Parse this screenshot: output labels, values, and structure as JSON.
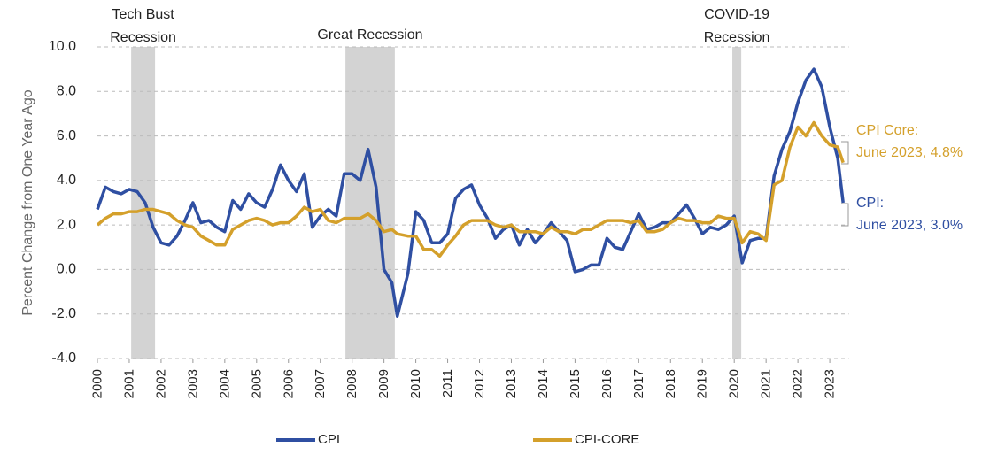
{
  "chart_data": {
    "type": "line",
    "y_label": "Percent Change from One Year Ago",
    "x": [
      2000,
      2000.25,
      2000.5,
      2000.75,
      2001,
      2001.25,
      2001.5,
      2001.75,
      2002,
      2002.25,
      2002.5,
      2002.75,
      2003,
      2003.25,
      2003.5,
      2003.75,
      2004,
      2004.25,
      2004.5,
      2004.75,
      2005,
      2005.25,
      2005.5,
      2005.75,
      2006,
      2006.25,
      2006.5,
      2006.75,
      2007,
      2007.25,
      2007.5,
      2007.75,
      2008,
      2008.25,
      2008.5,
      2008.75,
      2009,
      2009.25,
      2009.42,
      2009.75,
      2010,
      2010.25,
      2010.5,
      2010.75,
      2011,
      2011.25,
      2011.5,
      2011.75,
      2012,
      2012.25,
      2012.5,
      2012.75,
      2013,
      2013.25,
      2013.5,
      2013.75,
      2014,
      2014.25,
      2014.5,
      2014.75,
      2015,
      2015.25,
      2015.5,
      2015.75,
      2016,
      2016.25,
      2016.5,
      2016.75,
      2017,
      2017.25,
      2017.5,
      2017.75,
      2018,
      2018.25,
      2018.5,
      2018.75,
      2019,
      2019.25,
      2019.5,
      2019.75,
      2020,
      2020.25,
      2020.5,
      2020.75,
      2021,
      2021.25,
      2021.5,
      2021.75,
      2022,
      2022.25,
      2022.5,
      2022.75,
      2023,
      2023.25,
      2023.42
    ],
    "series": [
      {
        "name": "CPI",
        "color": "#2f4fa2",
        "values": [
          2.7,
          3.7,
          3.5,
          3.4,
          3.6,
          3.5,
          3.0,
          1.9,
          1.2,
          1.1,
          1.5,
          2.2,
          3.0,
          2.1,
          2.2,
          1.9,
          1.7,
          3.1,
          2.7,
          3.4,
          3.0,
          2.8,
          3.6,
          4.7,
          4.0,
          3.5,
          4.3,
          1.9,
          2.4,
          2.7,
          2.4,
          4.3,
          4.3,
          4.0,
          5.4,
          3.7,
          0.0,
          -0.6,
          -2.1,
          -0.2,
          2.6,
          2.2,
          1.2,
          1.2,
          1.6,
          3.2,
          3.6,
          3.8,
          2.9,
          2.3,
          1.4,
          1.8,
          2.0,
          1.1,
          1.8,
          1.2,
          1.6,
          2.1,
          1.7,
          1.3,
          -0.1,
          0.0,
          0.2,
          0.2,
          1.4,
          1.0,
          0.9,
          1.7,
          2.5,
          1.8,
          1.9,
          2.1,
          2.1,
          2.5,
          2.9,
          2.3,
          1.6,
          1.9,
          1.8,
          2.0,
          2.4,
          0.3,
          1.3,
          1.4,
          1.4,
          4.2,
          5.4,
          6.2,
          7.5,
          8.5,
          9.0,
          8.2,
          6.4,
          5.0,
          3.0
        ]
      },
      {
        "name": "CPI-CORE",
        "color": "#d4a02b",
        "values": [
          2.0,
          2.3,
          2.5,
          2.5,
          2.6,
          2.6,
          2.7,
          2.7,
          2.6,
          2.5,
          2.2,
          2.0,
          1.9,
          1.5,
          1.3,
          1.1,
          1.1,
          1.8,
          2.0,
          2.2,
          2.3,
          2.2,
          2.0,
          2.1,
          2.1,
          2.4,
          2.8,
          2.6,
          2.7,
          2.2,
          2.1,
          2.3,
          2.3,
          2.3,
          2.5,
          2.2,
          1.7,
          1.8,
          1.6,
          1.5,
          1.5,
          0.9,
          0.9,
          0.6,
          1.1,
          1.5,
          2.0,
          2.2,
          2.2,
          2.2,
          2.0,
          1.9,
          2.0,
          1.7,
          1.7,
          1.7,
          1.6,
          1.9,
          1.7,
          1.7,
          1.6,
          1.8,
          1.8,
          2.0,
          2.2,
          2.2,
          2.2,
          2.1,
          2.2,
          1.7,
          1.7,
          1.8,
          2.1,
          2.3,
          2.2,
          2.2,
          2.1,
          2.1,
          2.4,
          2.3,
          2.3,
          1.2,
          1.7,
          1.6,
          1.3,
          3.8,
          4.0,
          5.5,
          6.4,
          6.0,
          6.6,
          6.0,
          5.6,
          5.5,
          4.8
        ]
      }
    ],
    "xlim": [
      2000,
      2023.6
    ],
    "xticks": [
      2000,
      2001,
      2002,
      2003,
      2004,
      2005,
      2006,
      2007,
      2008,
      2009,
      2010,
      2011,
      2012,
      2013,
      2014,
      2015,
      2016,
      2017,
      2018,
      2019,
      2020,
      2021,
      2022,
      2023
    ],
    "ylim": [
      -4,
      10
    ],
    "yticks": [
      {
        "value": -4,
        "label": "-4.0"
      },
      {
        "value": -2,
        "label": "-2.0"
      },
      {
        "value": 0,
        "label": "0.0"
      },
      {
        "value": 2,
        "label": "2.0"
      },
      {
        "value": 4,
        "label": "4.0"
      },
      {
        "value": 6,
        "label": "6.0"
      },
      {
        "value": 8,
        "label": "8.0"
      },
      {
        "value": 10,
        "label": "10.0"
      }
    ],
    "grid": true,
    "recessions": [
      {
        "label": [
          "Tech Bust",
          "Recession"
        ],
        "start": 2001.06,
        "end": 2001.81,
        "color": "#d3d3d3"
      },
      {
        "label": [
          "Great Recession"
        ],
        "start": 2007.79,
        "end": 2009.34,
        "color": "#d3d3d3"
      },
      {
        "label": [
          "COVID-19",
          "Recession"
        ],
        "start": 2019.94,
        "end": 2020.22,
        "color": "#d3d3d3"
      }
    ],
    "annotations": [
      {
        "text": [
          "CPI Core:",
          "June 2023, 4.8%"
        ],
        "color": "#d4a02b"
      },
      {
        "text": [
          "CPI:",
          "June 2023, 3.0%"
        ],
        "color": "#2f4fa2"
      }
    ]
  }
}
